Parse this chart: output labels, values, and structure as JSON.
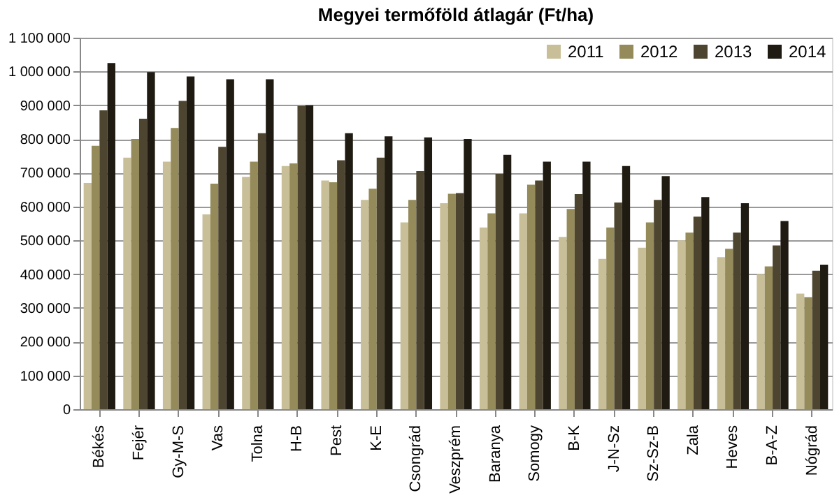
{
  "chart_data": {
    "type": "bar",
    "title": "Megyei termőföld átlagár (Ft/ha)",
    "categories": [
      "Békés",
      "Fejér",
      "Gy-M-S",
      "Vas",
      "Tolna",
      "H-B",
      "Pest",
      "K-E",
      "Csongrád",
      "Veszprém",
      "Baranya",
      "Somogy",
      "B-K",
      "J-N-Sz",
      "Sz-Sz-B",
      "Zala",
      "Heves",
      "B-A-Z",
      "Nógrád"
    ],
    "series": [
      {
        "name": "2011",
        "color": "#c8bf98",
        "values": [
          670000,
          745000,
          733000,
          577000,
          688000,
          720000,
          677000,
          620000,
          553000,
          610000,
          538000,
          580000,
          510000,
          445000,
          478000,
          500000,
          450000,
          400000,
          342000
        ]
      },
      {
        "name": "2012",
        "color": "#948a5a",
        "values": [
          780000,
          800000,
          833000,
          668000,
          733000,
          728000,
          672000,
          653000,
          620000,
          638000,
          580000,
          665000,
          593000,
          538000,
          553000,
          523000,
          475000,
          423000,
          332000
        ]
      },
      {
        "name": "2013",
        "color": "#4d4530",
        "values": [
          885000,
          860000,
          913000,
          777000,
          817000,
          898000,
          737000,
          745000,
          705000,
          640000,
          697000,
          677000,
          637000,
          612000,
          620000,
          570000,
          523000,
          485000,
          410000
        ]
      },
      {
        "name": "2014",
        "color": "#1f1b12",
        "values": [
          1025000,
          998000,
          985000,
          977000,
          977000,
          900000,
          817000,
          808000,
          805000,
          800000,
          753000,
          733000,
          733000,
          720000,
          690000,
          628000,
          610000,
          557000,
          428000
        ]
      }
    ],
    "ylim": [
      0,
      1100000
    ],
    "yticks": [
      0,
      {
        "value": 100000,
        "label": "100 000"
      },
      {
        "value": 200000,
        "label": "200 000"
      },
      {
        "value": 300000,
        "label": "300 000"
      },
      {
        "value": 400000,
        "label": "400 000"
      },
      {
        "value": 500000,
        "label": "500 000"
      },
      {
        "value": 600000,
        "label": "600 000"
      },
      {
        "value": 700000,
        "label": "700 000"
      },
      {
        "value": 800000,
        "label": "800 000"
      },
      {
        "value": 900000,
        "label": "900 000"
      },
      {
        "value": 1000000,
        "label": "1 000 000"
      },
      {
        "value": 1100000,
        "label": "1 100 000"
      }
    ],
    "grid": "y",
    "legend": "top right"
  }
}
